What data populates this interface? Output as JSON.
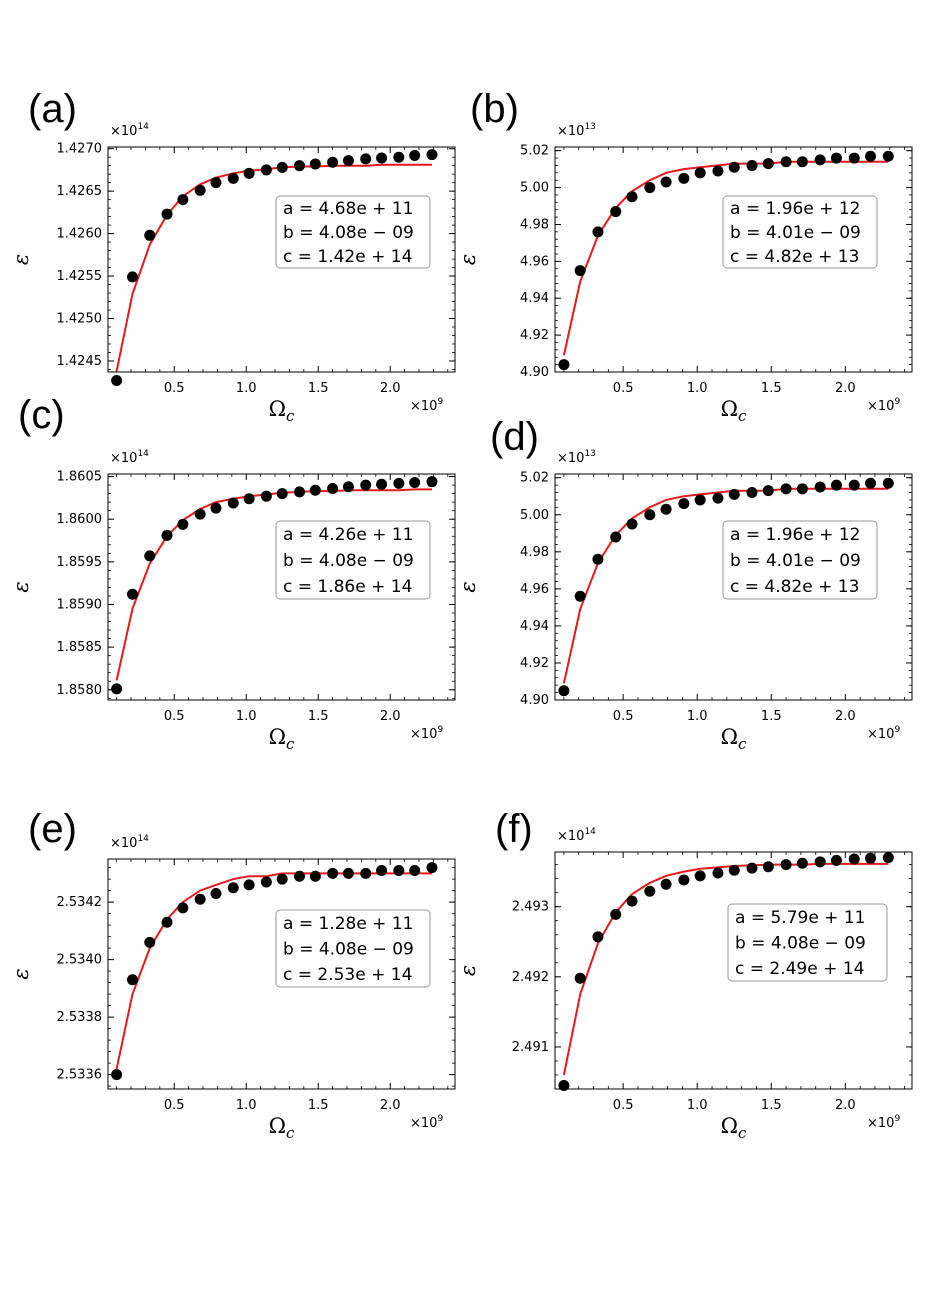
{
  "chart_data": [
    {
      "type": "scatter",
      "panel_label": "(a)",
      "xlabel": "Ω",
      "xlabel_sub": "c",
      "ylabel": "ε",
      "x_multiplier": "×10",
      "x_multiplier_exp": "9",
      "y_multiplier": "×10",
      "y_multiplier_exp": "14",
      "xlim": [
        0.04,
        2.45
      ],
      "ylim": [
        1.42437,
        1.42702
      ],
      "xticks": [
        0.5,
        1.0,
        1.5,
        2.0
      ],
      "xtick_labels": [
        "0.5",
        "1.0",
        "1.5",
        "2.0"
      ],
      "yticks": [
        1.4245,
        1.425,
        1.4255,
        1.426,
        1.4265,
        1.427
      ],
      "ytick_labels": [
        "1.4245",
        "1.4250",
        "1.4255",
        "1.4260",
        "1.4265",
        "1.4270"
      ],
      "series": [
        {
          "name": "data",
          "kind": "points",
          "x": [
            0.1,
            0.21,
            0.33,
            0.45,
            0.56,
            0.68,
            0.79,
            0.91,
            1.02,
            1.14,
            1.25,
            1.37,
            1.48,
            1.6,
            1.71,
            1.83,
            1.94,
            2.06,
            2.17,
            2.29
          ],
          "y": [
            1.42427,
            1.42549,
            1.42598,
            1.42623,
            1.4264,
            1.42651,
            1.4266,
            1.42665,
            1.42671,
            1.42675,
            1.42678,
            1.4268,
            1.42682,
            1.42684,
            1.42686,
            1.42688,
            1.42689,
            1.4269,
            1.42692,
            1.42693
          ]
        },
        {
          "name": "fit",
          "kind": "line",
          "color": "#e41a1c",
          "x": [
            0.1,
            0.21,
            0.33,
            0.45,
            0.56,
            0.68,
            0.79,
            0.91,
            1.02,
            1.14,
            1.25,
            1.37,
            1.48,
            1.6,
            1.71,
            1.83,
            1.94,
            2.06,
            2.17,
            2.29
          ],
          "y": [
            1.42438,
            1.42529,
            1.42587,
            1.42622,
            1.42644,
            1.42658,
            1.42666,
            1.42671,
            1.42674,
            1.42676,
            1.42678,
            1.42679,
            1.42679,
            1.4268,
            1.4268,
            1.4268,
            1.42681,
            1.42681,
            1.42681,
            1.42681
          ]
        }
      ],
      "legend": [
        "a = 4.68e + 11",
        "b = 4.08e − 09",
        "c = 1.42e + 14"
      ]
    },
    {
      "type": "scatter",
      "panel_label": "(b)",
      "xlabel": "Ω",
      "xlabel_sub": "c",
      "ylabel": "ε",
      "x_multiplier": "×10",
      "x_multiplier_exp": "9",
      "y_multiplier": "×10",
      "y_multiplier_exp": "13",
      "xlim": [
        0.04,
        2.45
      ],
      "ylim": [
        4.9,
        5.022
      ],
      "xticks": [
        0.5,
        1.0,
        1.5,
        2.0
      ],
      "xtick_labels": [
        "0.5",
        "1.0",
        "1.5",
        "2.0"
      ],
      "yticks": [
        4.9,
        4.92,
        4.94,
        4.96,
        4.98,
        5.0,
        5.02
      ],
      "ytick_labels": [
        "4.90",
        "4.92",
        "4.94",
        "4.96",
        "4.98",
        "5.00",
        "5.02"
      ],
      "series": [
        {
          "name": "data",
          "kind": "points",
          "x": [
            0.1,
            0.21,
            0.33,
            0.45,
            0.56,
            0.68,
            0.79,
            0.91,
            1.02,
            1.14,
            1.25,
            1.37,
            1.48,
            1.6,
            1.71,
            1.83,
            1.94,
            2.06,
            2.17,
            2.29
          ],
          "y": [
            4.904,
            4.955,
            4.976,
            4.987,
            4.995,
            5.0,
            5.003,
            5.005,
            5.008,
            5.009,
            5.011,
            5.012,
            5.013,
            5.014,
            5.014,
            5.015,
            5.016,
            5.016,
            5.017,
            5.017
          ]
        },
        {
          "name": "fit",
          "kind": "line",
          "color": "#e41a1c",
          "x": [
            0.1,
            0.21,
            0.33,
            0.45,
            0.56,
            0.68,
            0.79,
            0.91,
            1.02,
            1.14,
            1.25,
            1.37,
            1.48,
            1.6,
            1.71,
            1.83,
            1.94,
            2.06,
            2.17,
            2.29
          ],
          "y": [
            4.909,
            4.949,
            4.974,
            4.989,
            4.998,
            5.004,
            5.008,
            5.01,
            5.011,
            5.012,
            5.013,
            5.013,
            5.013,
            5.014,
            5.014,
            5.014,
            5.014,
            5.014,
            5.014,
            5.014
          ]
        }
      ],
      "legend": [
        "a = 1.96e + 12",
        "b = 4.01e − 09",
        "c = 4.82e + 13"
      ]
    },
    {
      "type": "scatter",
      "panel_label": "(c)",
      "xlabel": "Ω",
      "xlabel_sub": "c",
      "ylabel": "ε",
      "x_multiplier": "×10",
      "x_multiplier_exp": "9",
      "y_multiplier": "×10",
      "y_multiplier_exp": "14",
      "xlim": [
        0.04,
        2.45
      ],
      "ylim": [
        1.85788,
        1.86053
      ],
      "xticks": [
        0.5,
        1.0,
        1.5,
        2.0
      ],
      "xtick_labels": [
        "0.5",
        "1.0",
        "1.5",
        "2.0"
      ],
      "yticks": [
        1.858,
        1.8585,
        1.859,
        1.8595,
        1.86,
        1.8605
      ],
      "ytick_labels": [
        "1.8580",
        "1.8585",
        "1.8590",
        "1.8595",
        "1.8600",
        "1.8605"
      ],
      "series": [
        {
          "name": "data",
          "kind": "points",
          "x": [
            0.1,
            0.21,
            0.33,
            0.45,
            0.56,
            0.68,
            0.79,
            0.91,
            1.02,
            1.14,
            1.25,
            1.37,
            1.48,
            1.6,
            1.71,
            1.83,
            1.94,
            2.06,
            2.17,
            2.29
          ],
          "y": [
            1.85801,
            1.85912,
            1.85957,
            1.85981,
            1.85994,
            1.86006,
            1.86013,
            1.86019,
            1.86024,
            1.86027,
            1.8603,
            1.86032,
            1.86034,
            1.86036,
            1.86038,
            1.8604,
            1.86041,
            1.86042,
            1.86043,
            1.86044
          ]
        },
        {
          "name": "fit",
          "kind": "line",
          "color": "#e41a1c",
          "x": [
            0.1,
            0.21,
            0.33,
            0.45,
            0.56,
            0.68,
            0.79,
            0.91,
            1.02,
            1.14,
            1.25,
            1.37,
            1.48,
            1.6,
            1.71,
            1.83,
            1.94,
            2.06,
            2.17,
            2.29
          ],
          "y": [
            1.85811,
            1.85895,
            1.85948,
            1.8598,
            1.85999,
            1.86012,
            1.8602,
            1.86024,
            1.86027,
            1.86029,
            1.86031,
            1.86032,
            1.86033,
            1.86033,
            1.86034,
            1.86034,
            1.86034,
            1.86034,
            1.86035,
            1.86035
          ]
        }
      ],
      "legend": [
        "a = 4.26e + 11",
        "b = 4.08e − 09",
        "c = 1.86e + 14"
      ]
    },
    {
      "type": "scatter",
      "panel_label": "(d)",
      "xlabel": "Ω",
      "xlabel_sub": "c",
      "ylabel": "ε",
      "x_multiplier": "×10",
      "x_multiplier_exp": "9",
      "y_multiplier": "×10",
      "y_multiplier_exp": "13",
      "xlim": [
        0.04,
        2.45
      ],
      "ylim": [
        4.9,
        5.022
      ],
      "xticks": [
        0.5,
        1.0,
        1.5,
        2.0
      ],
      "xtick_labels": [
        "0.5",
        "1.0",
        "1.5",
        "2.0"
      ],
      "yticks": [
        4.9,
        4.92,
        4.94,
        4.96,
        4.98,
        5.0,
        5.02
      ],
      "ytick_labels": [
        "4.90",
        "4.92",
        "4.94",
        "4.96",
        "4.98",
        "5.00",
        "5.02"
      ],
      "series": [
        {
          "name": "data",
          "kind": "points",
          "x": [
            0.1,
            0.21,
            0.33,
            0.45,
            0.56,
            0.68,
            0.79,
            0.91,
            1.02,
            1.14,
            1.25,
            1.37,
            1.48,
            1.6,
            1.71,
            1.83,
            1.94,
            2.06,
            2.17,
            2.29
          ],
          "y": [
            4.905,
            4.956,
            4.976,
            4.988,
            4.995,
            5.0,
            5.003,
            5.006,
            5.008,
            5.009,
            5.011,
            5.012,
            5.013,
            5.014,
            5.014,
            5.015,
            5.016,
            5.016,
            5.017,
            5.017
          ]
        },
        {
          "name": "fit",
          "kind": "line",
          "color": "#e41a1c",
          "x": [
            0.1,
            0.21,
            0.33,
            0.45,
            0.56,
            0.68,
            0.79,
            0.91,
            1.02,
            1.14,
            1.25,
            1.37,
            1.48,
            1.6,
            1.71,
            1.83,
            1.94,
            2.06,
            2.17,
            2.29
          ],
          "y": [
            4.909,
            4.949,
            4.974,
            4.989,
            4.998,
            5.004,
            5.008,
            5.01,
            5.011,
            5.012,
            5.013,
            5.013,
            5.013,
            5.014,
            5.014,
            5.014,
            5.014,
            5.014,
            5.014,
            5.014
          ]
        }
      ],
      "legend": [
        "a = 1.96e + 12",
        "b = 4.01e − 09",
        "c = 4.82e + 13"
      ]
    },
    {
      "type": "scatter",
      "panel_label": "(e)",
      "xlabel": "Ω",
      "xlabel_sub": "c",
      "ylabel": "ε",
      "x_multiplier": "×10",
      "x_multiplier_exp": "9",
      "y_multiplier": "×10",
      "y_multiplier_exp": "14",
      "xlim": [
        0.04,
        2.45
      ],
      "ylim": [
        2.53355,
        2.53435
      ],
      "xticks": [
        0.5,
        1.0,
        1.5,
        2.0
      ],
      "xtick_labels": [
        "0.5",
        "1.0",
        "1.5",
        "2.0"
      ],
      "yticks": [
        2.5336,
        2.5338,
        2.534,
        2.5342
      ],
      "ytick_labels": [
        "2.5336",
        "2.5338",
        "2.5340",
        "2.5342"
      ],
      "series": [
        {
          "name": "data",
          "kind": "points",
          "x": [
            0.1,
            0.21,
            0.33,
            0.45,
            0.56,
            0.68,
            0.79,
            0.91,
            1.02,
            1.14,
            1.25,
            1.37,
            1.48,
            1.6,
            1.71,
            1.83,
            1.94,
            2.06,
            2.17,
            2.29
          ],
          "y": [
            2.5336,
            2.53393,
            2.53406,
            2.53413,
            2.53418,
            2.53421,
            2.53423,
            2.53425,
            2.53426,
            2.53427,
            2.53428,
            2.53429,
            2.53429,
            2.5343,
            2.5343,
            2.5343,
            2.53431,
            2.53431,
            2.53431,
            2.53432
          ]
        },
        {
          "name": "fit",
          "kind": "line",
          "color": "#e41a1c",
          "x": [
            0.1,
            0.21,
            0.33,
            0.45,
            0.56,
            0.68,
            0.79,
            0.91,
            1.02,
            1.14,
            1.25,
            1.37,
            1.48,
            1.6,
            1.71,
            1.83,
            1.94,
            2.06,
            2.17,
            2.29
          ],
          "y": [
            2.53362,
            2.53388,
            2.53404,
            2.53414,
            2.5342,
            2.53424,
            2.53426,
            2.53428,
            2.53429,
            2.53429,
            2.5343,
            2.5343,
            2.5343,
            2.5343,
            2.5343,
            2.5343,
            2.5343,
            2.5343,
            2.5343,
            2.5343
          ]
        }
      ],
      "legend": [
        "a = 1.28e + 11",
        "b = 4.08e − 09",
        "c = 2.53e + 14"
      ]
    },
    {
      "type": "scatter",
      "panel_label": "(f)",
      "xlabel": "Ω",
      "xlabel_sub": "c",
      "ylabel": "ε",
      "x_multiplier": "×10",
      "x_multiplier_exp": "9",
      "y_multiplier": "×10",
      "y_multiplier_exp": "14",
      "xlim": [
        0.04,
        2.45
      ],
      "ylim": [
        2.4904,
        2.49378
      ],
      "xticks": [
        0.5,
        1.0,
        1.5,
        2.0
      ],
      "xtick_labels": [
        "0.5",
        "1.0",
        "1.5",
        "2.0"
      ],
      "yticks": [
        2.491,
        2.492,
        2.493
      ],
      "ytick_labels": [
        "2.491",
        "2.492",
        "2.493"
      ],
      "series": [
        {
          "name": "data",
          "kind": "points",
          "x": [
            0.1,
            0.21,
            0.33,
            0.45,
            0.56,
            0.68,
            0.79,
            0.91,
            1.02,
            1.14,
            1.25,
            1.37,
            1.48,
            1.6,
            1.71,
            1.83,
            1.94,
            2.06,
            2.17,
            2.29
          ],
          "y": [
            2.49045,
            2.49198,
            2.49257,
            2.49289,
            2.49308,
            2.49322,
            2.49332,
            2.49338,
            2.49344,
            2.49348,
            2.49352,
            2.49355,
            2.49357,
            2.4936,
            2.49362,
            2.49364,
            2.49366,
            2.49368,
            2.49369,
            2.4937
          ]
        },
        {
          "name": "fit",
          "kind": "line",
          "color": "#e41a1c",
          "x": [
            0.1,
            0.21,
            0.33,
            0.45,
            0.56,
            0.68,
            0.79,
            0.91,
            1.02,
            1.14,
            1.25,
            1.37,
            1.48,
            1.6,
            1.71,
            1.83,
            1.94,
            2.06,
            2.17,
            2.29
          ],
          "y": [
            2.4906,
            2.49175,
            2.49248,
            2.49292,
            2.49318,
            2.49334,
            2.49344,
            2.4935,
            2.49354,
            2.49356,
            2.49358,
            2.49359,
            2.4936,
            2.4936,
            2.4936,
            2.49361,
            2.49361,
            2.49361,
            2.49361,
            2.49361
          ]
        }
      ],
      "legend": [
        "a = 5.79e + 11",
        "b = 4.08e − 09",
        "c = 2.49e + 14"
      ]
    }
  ]
}
